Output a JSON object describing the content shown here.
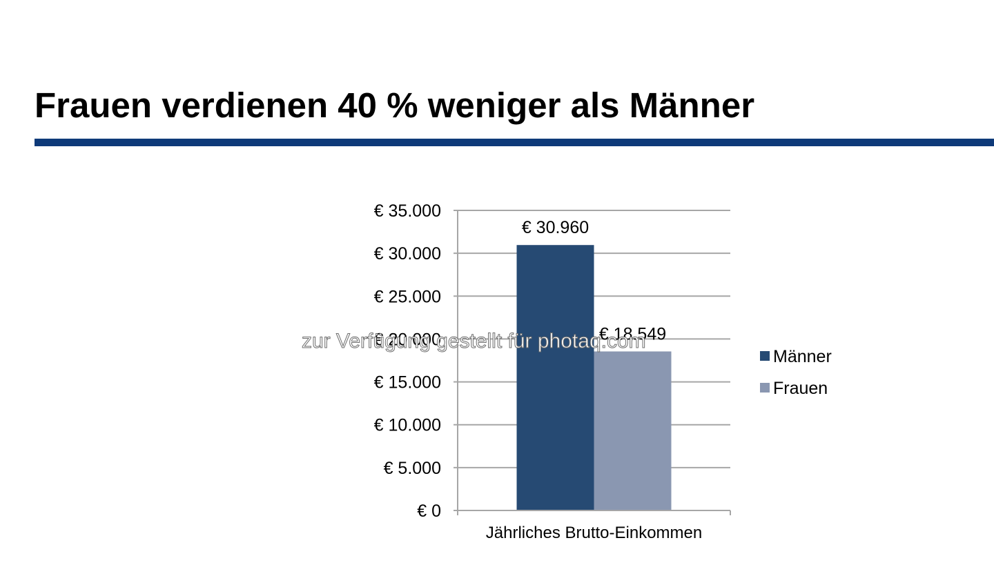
{
  "slide": {
    "title": "Frauen verdienen 40 % weniger als Männer",
    "accent_color": "#0e3a79",
    "watermark": "zur Verfügung gestellt für photaq.com"
  },
  "chart_data": {
    "type": "bar",
    "title": "",
    "categories": [
      "Jährliches Brutto-Einkommen"
    ],
    "series": [
      {
        "name": "Männer",
        "values": [
          30960
        ],
        "label": "€ 30.960",
        "color": "#264a73"
      },
      {
        "name": "Frauen",
        "values": [
          18549
        ],
        "label": "€ 18.549",
        "color": "#8a97b1"
      }
    ],
    "xlabel": "",
    "ylabel": "",
    "ylim": [
      0,
      35000
    ],
    "y_ticks": [
      {
        "value": 0,
        "label": "€ 0"
      },
      {
        "value": 5000,
        "label": "€ 5.000"
      },
      {
        "value": 10000,
        "label": "€ 10.000"
      },
      {
        "value": 15000,
        "label": "€ 15.000"
      },
      {
        "value": 20000,
        "label": "€ 20.000"
      },
      {
        "value": 25000,
        "label": "€ 25.000"
      },
      {
        "value": 30000,
        "label": "€ 30.000"
      },
      {
        "value": 35000,
        "label": "€ 35.000"
      }
    ],
    "grid": true,
    "legend_position": "right",
    "gridline_color": "#a6a6a6"
  }
}
